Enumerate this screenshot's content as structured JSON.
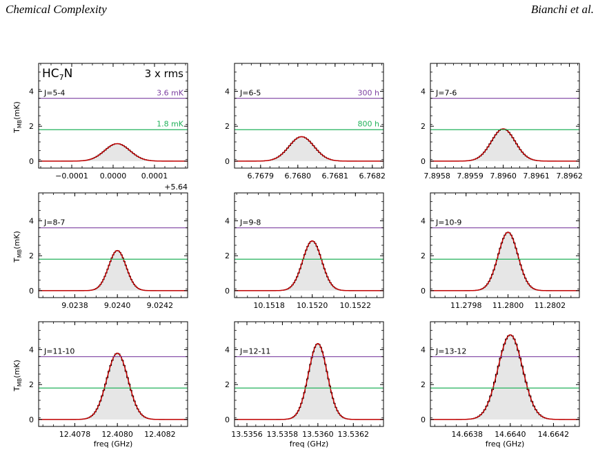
{
  "header": {
    "left": "Chemical Complexity",
    "right": "Bianchi et al."
  },
  "figure": {
    "molecule": "HC",
    "molecule_sub": "7",
    "molecule_end": "N",
    "rms_label": "3 x rms",
    "ylabel": "T",
    "ylabel_sub": "MB",
    "ylabel_unit": "(mK)",
    "xlabel": "freq (GHz)"
  },
  "chart_data": [
    {
      "type": "line",
      "transition": "J=5-4",
      "offset_label": "+5.64",
      "xlim": [
        -0.00018,
        0.00018
      ],
      "xticks": [
        -0.0001,
        0,
        0.0001
      ],
      "xticklabels": [
        "−0.0001",
        "0.0000",
        "0.0001"
      ],
      "ylim": [
        -0.4,
        5.6
      ],
      "yticks": [
        0,
        2,
        4
      ],
      "center": 1e-05,
      "peak": 1.0,
      "width": 3.05e-05,
      "hline_purple": 3.6,
      "hline_green": 1.8,
      "hline_purple_label": "3.6 mK",
      "hline_green_label": "1.8 mK"
    },
    {
      "type": "line",
      "transition": "J=6-5",
      "xlim": [
        6.76783,
        6.76823
      ],
      "xticks": [
        6.7679,
        6.768,
        6.7681,
        6.7682
      ],
      "xticklabels": [
        "6.7679",
        "6.7680",
        "6.7681",
        "6.7682"
      ],
      "ylim": [
        -0.4,
        5.6
      ],
      "yticks": [
        0,
        2,
        4
      ],
      "center": 6.76801,
      "peak": 1.4,
      "width": 3.35e-05,
      "hline_purple": 3.6,
      "hline_green": 1.8,
      "hline_purple_label": "300 h",
      "hline_green_label": "800 h"
    },
    {
      "type": "line",
      "transition": "J=7-6",
      "xlim": [
        7.89578,
        7.89623
      ],
      "xticks": [
        7.8958,
        7.8959,
        7.896,
        7.8961,
        7.8962
      ],
      "xticklabels": [
        "7.8958",
        "7.8959",
        "7.8960",
        "7.8961",
        "7.8962"
      ],
      "ylim": [
        -0.4,
        5.6
      ],
      "yticks": [
        0,
        2,
        4
      ],
      "center": 7.896,
      "peak": 1.85,
      "width": 3.6e-05,
      "hline_purple": 3.6,
      "hline_green": 1.8
    },
    {
      "type": "line",
      "transition": "J=8-7",
      "xlim": [
        9.02363,
        9.02433
      ],
      "xticks": [
        9.0238,
        9.024,
        9.0242
      ],
      "xticklabels": [
        "9.0238",
        "9.0240",
        "9.0242"
      ],
      "ylim": [
        -0.4,
        5.6
      ],
      "yticks": [
        0,
        2,
        4
      ],
      "center": 9.024,
      "peak": 2.3,
      "width": 4.1e-05,
      "hline_purple": 3.6,
      "hline_green": 1.8
    },
    {
      "type": "line",
      "transition": "J=9-8",
      "xlim": [
        10.15164,
        10.15233
      ],
      "xticks": [
        10.1518,
        10.152,
        10.1522
      ],
      "xticklabels": [
        "10.1518",
        "10.1520",
        "10.1522"
      ],
      "ylim": [
        -0.4,
        5.6
      ],
      "yticks": [
        0,
        2,
        4
      ],
      "center": 10.152,
      "peak": 2.85,
      "width": 4.4e-05,
      "hline_purple": 3.6,
      "hline_green": 1.8
    },
    {
      "type": "line",
      "transition": "J=10-9",
      "xlim": [
        11.27963,
        11.28034
      ],
      "xticks": [
        11.2798,
        11.28,
        11.2802
      ],
      "xticklabels": [
        "11.2798",
        "11.2800",
        "11.2802"
      ],
      "ylim": [
        -0.4,
        5.6
      ],
      "yticks": [
        0,
        2,
        4
      ],
      "center": 11.28,
      "peak": 3.35,
      "width": 4.7e-05,
      "hline_purple": 3.6,
      "hline_green": 1.8
    },
    {
      "type": "line",
      "transition": "J=11-10",
      "xlim": [
        12.40763,
        12.40833
      ],
      "xticks": [
        12.4078,
        12.408,
        12.4082
      ],
      "xticklabels": [
        "12.4078",
        "12.4080",
        "12.4082"
      ],
      "ylim": [
        -0.4,
        5.6
      ],
      "yticks": [
        0,
        2,
        4
      ],
      "center": 12.408,
      "peak": 3.8,
      "width": 5e-05,
      "hline_purple": 3.6,
      "hline_green": 1.8
    },
    {
      "type": "line",
      "transition": "J=12-11",
      "xlim": [
        13.53553,
        13.53637
      ],
      "xticks": [
        13.5356,
        13.5358,
        13.536,
        13.5362
      ],
      "xticklabels": [
        "13.5356",
        "13.5358",
        "13.5360",
        "13.5362"
      ],
      "ylim": [
        -0.4,
        5.6
      ],
      "yticks": [
        0,
        2,
        4
      ],
      "center": 13.536,
      "peak": 4.35,
      "width": 5.3e-05,
      "hline_purple": 3.6,
      "hline_green": 1.8
    },
    {
      "type": "line",
      "transition": "J=13-12",
      "xlim": [
        14.66363,
        14.66432
      ],
      "xticks": [
        14.6638,
        14.664,
        14.6642
      ],
      "xticklabels": [
        "14.6638",
        "14.6640",
        "14.6642"
      ],
      "ylim": [
        -0.4,
        5.6
      ],
      "yticks": [
        0,
        2,
        4
      ],
      "center": 14.664,
      "peak": 4.85,
      "width": 5.7e-05,
      "hline_purple": 3.6,
      "hline_green": 1.8
    }
  ],
  "colors": {
    "purple": "#7b3fa0",
    "green": "#21b15a",
    "red": "#c40000",
    "histogram": "#000000",
    "fill": "#e6e6e6"
  }
}
